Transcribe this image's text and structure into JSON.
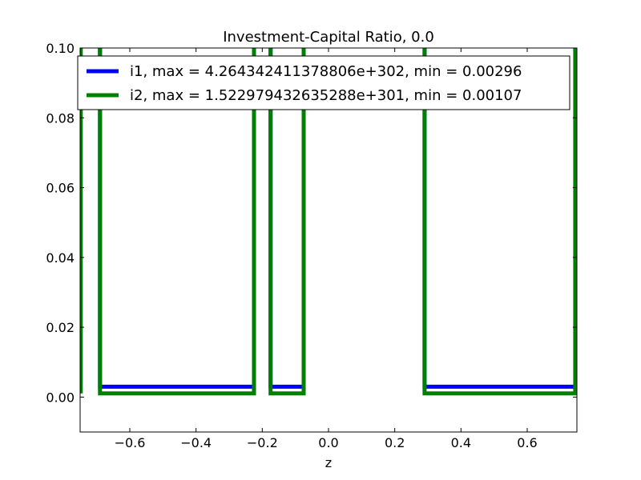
{
  "chart_data": {
    "type": "line",
    "title": "Investment-Capital Ratio, 0.0",
    "xlabel": "z",
    "ylabel": "",
    "xlim": [
      -0.75,
      0.75
    ],
    "ylim": [
      -0.01,
      0.1
    ],
    "grid": false,
    "legend_position": "top",
    "x_ticks": [
      -0.6,
      -0.4,
      -0.2,
      0.0,
      0.2,
      0.4,
      0.6
    ],
    "x_tick_labels": [
      "−0.6",
      "−0.4",
      "−0.2",
      "0.0",
      "0.2",
      "0.4",
      "0.6"
    ],
    "y_ticks": [
      0.0,
      0.02,
      0.04,
      0.06,
      0.08,
      0.1
    ],
    "y_tick_labels": [
      "0.00",
      "0.02",
      "0.04",
      "0.06",
      "0.08",
      "0.10"
    ],
    "series": [
      {
        "name": "i1",
        "legend_label": "i1, max = 4.264342411378806e+302, min = 0.00296",
        "color": "#0000ff",
        "segments": [
          {
            "x": [
              -0.69,
              -0.69,
              -0.225,
              -0.225
            ],
            "y": [
              0.1,
              0.00296,
              0.00296,
              0.1
            ]
          },
          {
            "x": [
              -0.175,
              -0.175,
              -0.075,
              -0.075
            ],
            "y": [
              0.1,
              0.00296,
              0.00296,
              0.1
            ]
          },
          {
            "x": [
              0.29,
              0.29,
              0.75
            ],
            "y": [
              0.1,
              0.00296,
              0.00296
            ]
          }
        ]
      },
      {
        "name": "i2",
        "legend_label": "i2, max = 1.522979432635288e+301, min = 0.00107",
        "color": "#008000",
        "segments": [
          {
            "x": [
              -0.748,
              -0.748
            ],
            "y": [
              0.1,
              0.00107
            ]
          },
          {
            "x": [
              -0.69,
              -0.69,
              -0.225,
              -0.225
            ],
            "y": [
              0.1,
              0.00107,
              0.00107,
              0.1
            ]
          },
          {
            "x": [
              -0.175,
              -0.175,
              -0.075,
              -0.075
            ],
            "y": [
              0.1,
              0.00107,
              0.00107,
              0.1
            ]
          },
          {
            "x": [
              0.29,
              0.29,
              0.745,
              0.745
            ],
            "y": [
              0.1,
              0.00107,
              0.00107,
              0.1
            ]
          }
        ]
      }
    ]
  }
}
